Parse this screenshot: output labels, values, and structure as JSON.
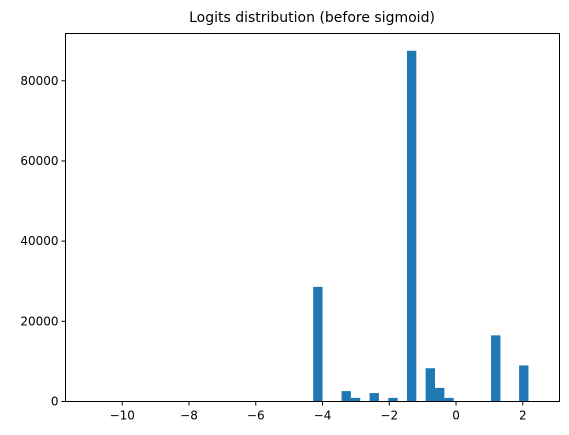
{
  "chart_data": {
    "type": "bar",
    "title": "Logits distribution (before sigmoid)",
    "xlabel": "",
    "ylabel": "",
    "xlim": [
      -11.7,
      3.1
    ],
    "ylim": [
      0,
      91800
    ],
    "grid": false,
    "bar_color": "#1f77b4",
    "bin_width": 0.28,
    "x_ticks": [
      -10,
      -8,
      -6,
      -4,
      -2,
      0,
      2
    ],
    "x_tick_labels": [
      "−10",
      "−8",
      "−6",
      "−4",
      "−2",
      "0",
      "2"
    ],
    "y_ticks": [
      0,
      20000,
      40000,
      60000,
      80000
    ],
    "y_tick_labels": [
      "0",
      "20000",
      "40000",
      "60000",
      "80000"
    ],
    "bars": [
      {
        "x": -4.14,
        "value": 28600
      },
      {
        "x": -3.29,
        "value": 2600
      },
      {
        "x": -3.01,
        "value": 900
      },
      {
        "x": -2.45,
        "value": 2100
      },
      {
        "x": -1.89,
        "value": 900
      },
      {
        "x": -1.33,
        "value": 87500
      },
      {
        "x": -0.77,
        "value": 8300
      },
      {
        "x": -0.49,
        "value": 3400
      },
      {
        "x": -0.21,
        "value": 900
      },
      {
        "x": 1.19,
        "value": 16500
      },
      {
        "x": 2.03,
        "value": 9000
      }
    ]
  }
}
